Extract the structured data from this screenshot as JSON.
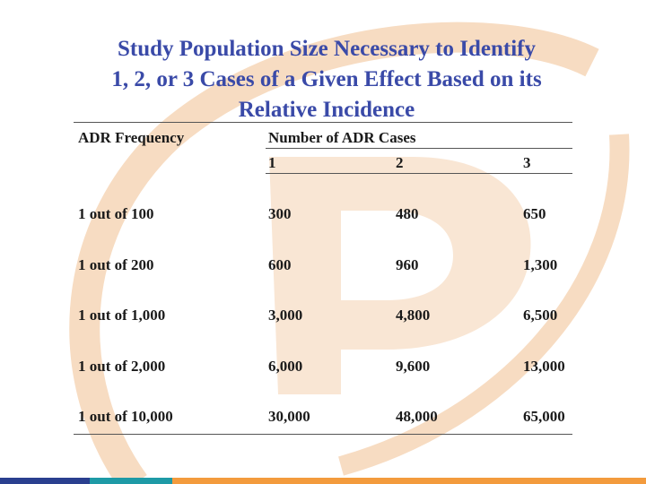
{
  "slide": {
    "title_lines": [
      "Study Population Size Necessary to Identify",
      "1, 2, or 3 Cases of a Given Effect Based on its",
      "Relative Incidence"
    ]
  },
  "table": {
    "frequency_header": "ADR Frequency",
    "cases_header": "Number of ADR Cases",
    "case_columns": [
      "1",
      "2",
      "3"
    ],
    "rows": [
      {
        "frequency": "1 out of 100",
        "cases": [
          "300",
          "480",
          "650"
        ]
      },
      {
        "frequency": "1 out of 200",
        "cases": [
          "600",
          "960",
          "1,300"
        ]
      },
      {
        "frequency": "1 out of 1,000",
        "cases": [
          "3,000",
          "4,800",
          "6,500"
        ]
      },
      {
        "frequency": "1 out of 2,000",
        "cases": [
          "6,000",
          "9,600",
          "13,000"
        ]
      },
      {
        "frequency": "1 out of 10,000",
        "cases": [
          "30,000",
          "48,000",
          "65,000"
        ]
      }
    ]
  },
  "colors": {
    "title": "#3a4aa8",
    "watermark": "#f7dcc2",
    "bar_navy": "#2a3f8f",
    "bar_teal": "#1e9aa6",
    "bar_orange": "#f39b3d"
  }
}
